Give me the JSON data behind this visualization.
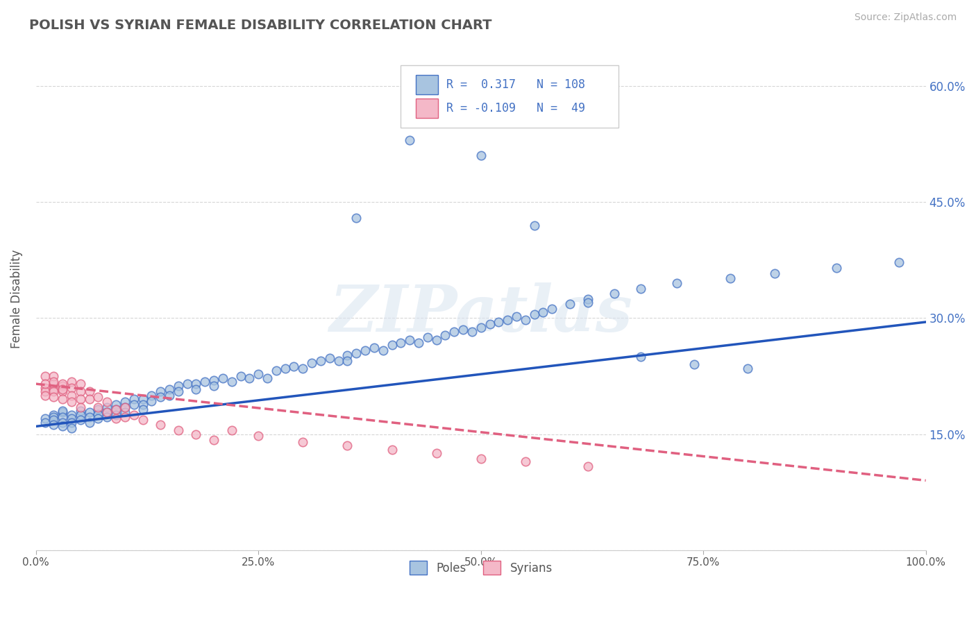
{
  "title": "POLISH VS SYRIAN FEMALE DISABILITY CORRELATION CHART",
  "source": "Source: ZipAtlas.com",
  "ylabel": "Female Disability",
  "ytick_vals": [
    0.0,
    0.15,
    0.3,
    0.45,
    0.6
  ],
  "ytick_labels_left": [
    "",
    "",
    "",
    "",
    ""
  ],
  "ytick_labels_right": [
    "",
    "15.0%",
    "30.0%",
    "45.0%",
    "60.0%"
  ],
  "xtick_vals": [
    0.0,
    0.25,
    0.5,
    0.75,
    1.0
  ],
  "xtick_labels": [
    "0.0%",
    "25.0%",
    "50.0%",
    "75.0%",
    "100.0%"
  ],
  "xlim": [
    0.0,
    1.0
  ],
  "ylim": [
    0.0,
    0.65
  ],
  "poles_color": "#a8c4e0",
  "poles_edge_color": "#4472c4",
  "syrians_color": "#f4b8c8",
  "syrians_edge_color": "#e06080",
  "poles_trend_color": "#2255bb",
  "syrians_trend_color": "#e06080",
  "legend_R1": "0.317",
  "legend_N1": "108",
  "legend_R2": "-0.109",
  "legend_N2": "49",
  "watermark": "ZIPatlas",
  "poles_scatter_x": [
    0.01,
    0.01,
    0.02,
    0.02,
    0.02,
    0.02,
    0.03,
    0.03,
    0.03,
    0.03,
    0.03,
    0.04,
    0.04,
    0.04,
    0.04,
    0.05,
    0.05,
    0.05,
    0.06,
    0.06,
    0.06,
    0.07,
    0.07,
    0.07,
    0.08,
    0.08,
    0.08,
    0.09,
    0.09,
    0.09,
    0.1,
    0.1,
    0.1,
    0.11,
    0.11,
    0.12,
    0.12,
    0.12,
    0.13,
    0.13,
    0.14,
    0.14,
    0.15,
    0.15,
    0.16,
    0.16,
    0.17,
    0.18,
    0.18,
    0.19,
    0.2,
    0.2,
    0.21,
    0.22,
    0.23,
    0.24,
    0.25,
    0.26,
    0.27,
    0.28,
    0.29,
    0.3,
    0.31,
    0.32,
    0.33,
    0.34,
    0.35,
    0.35,
    0.36,
    0.37,
    0.38,
    0.39,
    0.4,
    0.41,
    0.42,
    0.43,
    0.44,
    0.45,
    0.46,
    0.47,
    0.48,
    0.49,
    0.5,
    0.51,
    0.52,
    0.53,
    0.54,
    0.55,
    0.56,
    0.57,
    0.58,
    0.6,
    0.62,
    0.65,
    0.68,
    0.72,
    0.78,
    0.83,
    0.9,
    0.97,
    0.36,
    0.42,
    0.5,
    0.56,
    0.62,
    0.68,
    0.74,
    0.8
  ],
  "poles_scatter_y": [
    0.17,
    0.165,
    0.175,
    0.172,
    0.168,
    0.162,
    0.178,
    0.18,
    0.172,
    0.165,
    0.16,
    0.175,
    0.17,
    0.165,
    0.158,
    0.18,
    0.175,
    0.168,
    0.178,
    0.172,
    0.165,
    0.182,
    0.176,
    0.17,
    0.185,
    0.178,
    0.172,
    0.188,
    0.182,
    0.175,
    0.192,
    0.185,
    0.178,
    0.195,
    0.188,
    0.195,
    0.188,
    0.182,
    0.2,
    0.193,
    0.205,
    0.198,
    0.208,
    0.2,
    0.212,
    0.205,
    0.215,
    0.215,
    0.208,
    0.218,
    0.22,
    0.212,
    0.222,
    0.218,
    0.225,
    0.222,
    0.228,
    0.222,
    0.232,
    0.235,
    0.238,
    0.235,
    0.242,
    0.245,
    0.248,
    0.245,
    0.252,
    0.245,
    0.255,
    0.258,
    0.262,
    0.258,
    0.265,
    0.268,
    0.272,
    0.268,
    0.275,
    0.272,
    0.278,
    0.282,
    0.285,
    0.282,
    0.288,
    0.292,
    0.295,
    0.298,
    0.302,
    0.298,
    0.305,
    0.308,
    0.312,
    0.318,
    0.325,
    0.332,
    0.338,
    0.345,
    0.352,
    0.358,
    0.365,
    0.372,
    0.43,
    0.53,
    0.51,
    0.42,
    0.32,
    0.25,
    0.24,
    0.235
  ],
  "syrians_scatter_x": [
    0.01,
    0.01,
    0.01,
    0.01,
    0.01,
    0.02,
    0.02,
    0.02,
    0.02,
    0.02,
    0.02,
    0.03,
    0.03,
    0.03,
    0.03,
    0.03,
    0.04,
    0.04,
    0.04,
    0.04,
    0.05,
    0.05,
    0.05,
    0.05,
    0.06,
    0.06,
    0.07,
    0.07,
    0.08,
    0.08,
    0.09,
    0.09,
    0.1,
    0.1,
    0.11,
    0.12,
    0.14,
    0.16,
    0.18,
    0.2,
    0.22,
    0.25,
    0.3,
    0.35,
    0.4,
    0.45,
    0.5,
    0.55,
    0.62
  ],
  "syrians_scatter_y": [
    0.21,
    0.205,
    0.225,
    0.215,
    0.2,
    0.208,
    0.215,
    0.225,
    0.218,
    0.205,
    0.198,
    0.212,
    0.205,
    0.195,
    0.215,
    0.208,
    0.218,
    0.21,
    0.2,
    0.192,
    0.215,
    0.205,
    0.195,
    0.185,
    0.205,
    0.195,
    0.198,
    0.185,
    0.192,
    0.178,
    0.182,
    0.17,
    0.185,
    0.172,
    0.175,
    0.168,
    0.162,
    0.155,
    0.15,
    0.142,
    0.155,
    0.148,
    0.14,
    0.135,
    0.13,
    0.125,
    0.118,
    0.115,
    0.108
  ],
  "poles_trend_x": [
    0.0,
    1.0
  ],
  "poles_trend_y": [
    0.16,
    0.295
  ],
  "syrians_trend_x": [
    0.0,
    1.0
  ],
  "syrians_trend_y": [
    0.215,
    0.09
  ]
}
